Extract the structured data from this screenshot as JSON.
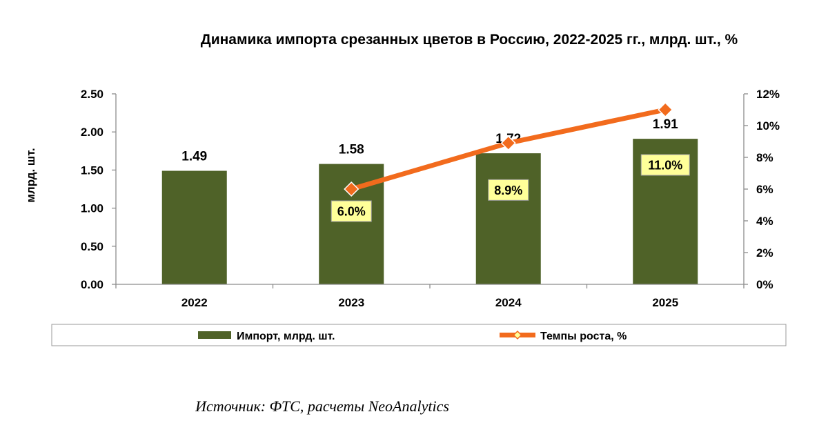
{
  "chart_data": {
    "type": "bar",
    "title": "Динамика импорта срезанных цветов в Россию, 2022-2025 гг., млрд. шт., %",
    "categories": [
      "2022",
      "2023",
      "2024",
      "2025"
    ],
    "series": [
      {
        "name": "Импорт, млрд. шт.",
        "type": "bar",
        "axis": "left",
        "values": [
          1.49,
          1.58,
          1.72,
          1.91
        ],
        "labels": [
          "1.49",
          "1.58",
          "1.72",
          "1.91"
        ],
        "color": "#4f6228"
      },
      {
        "name": "Темпы роста, %",
        "type": "line",
        "axis": "right",
        "values": [
          null,
          6.0,
          8.9,
          11.0
        ],
        "labels": [
          "",
          "6.0%",
          "8.9%",
          "11.0%"
        ],
        "color": "#f26b1d"
      }
    ],
    "ylabel": "млрд. шт.",
    "ylim": [
      0,
      2.5
    ],
    "yticks": [
      "0.00",
      "0.50",
      "1.00",
      "1.50",
      "2.00",
      "2.50"
    ],
    "y2lim": [
      0,
      12
    ],
    "y2ticks": [
      "0%",
      "2%",
      "4%",
      "6%",
      "8%",
      "10%",
      "12%"
    ],
    "legend_position": "bottom",
    "label_box_color": "#ffff99",
    "marker_color": "#ffff99"
  },
  "source": "Источник: ФТС, расчеты NeoAnalytics"
}
